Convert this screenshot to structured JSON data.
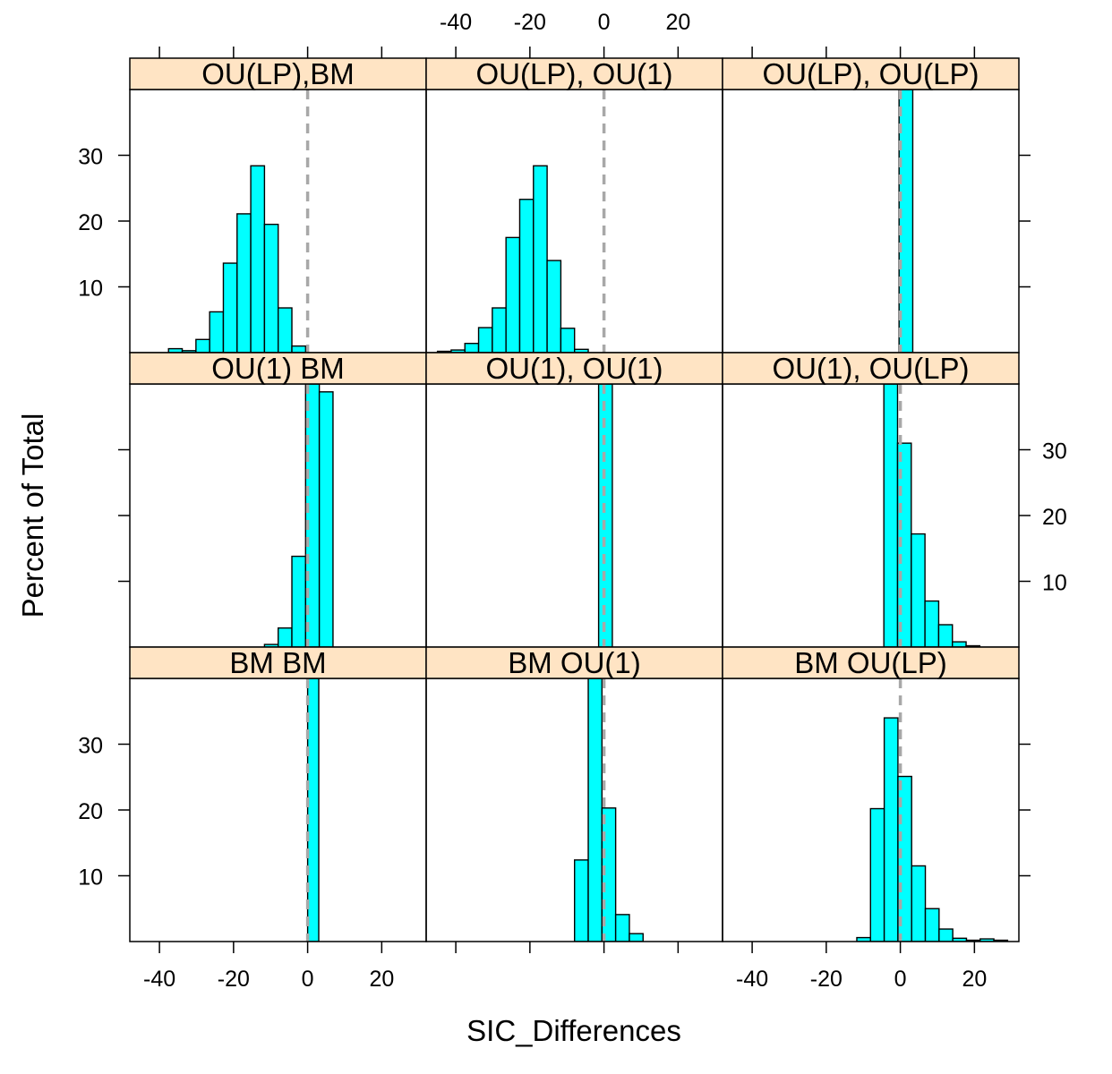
{
  "chart_data": {
    "type": "bar",
    "layout": "lattice-3x3",
    "xlabel": "SIC_Differences",
    "ylabel": "Percent of Total",
    "xlim": [
      -48,
      32
    ],
    "ylim": [
      0,
      40
    ],
    "x_ticks": [
      "-40",
      "-20",
      "0",
      "20"
    ],
    "y_ticks": [
      "10",
      "20",
      "30"
    ],
    "reference_line_x": 0,
    "strip_color": "#ffe4c4",
    "bar_color": "#00ffff",
    "reference_line_color": "#a8a8a8",
    "panels": [
      {
        "strip": "OU(LP),BM",
        "bin_width": 3.7,
        "bars": [
          {
            "x": -35.7,
            "y": 0.6
          },
          {
            "x": -32.0,
            "y": 0.3
          },
          {
            "x": -28.3,
            "y": 2.0
          },
          {
            "x": -24.6,
            "y": 6.2
          },
          {
            "x": -20.9,
            "y": 13.6
          },
          {
            "x": -17.2,
            "y": 21.1
          },
          {
            "x": -13.5,
            "y": 28.4
          },
          {
            "x": -9.8,
            "y": 19.5
          },
          {
            "x": -6.1,
            "y": 6.8
          },
          {
            "x": -2.4,
            "y": 1.0
          }
        ]
      },
      {
        "strip": "OU(LP), OU(1)",
        "bin_width": 3.7,
        "bars": [
          {
            "x": -43.1,
            "y": 0.2
          },
          {
            "x": -39.4,
            "y": 0.4
          },
          {
            "x": -35.7,
            "y": 1.4
          },
          {
            "x": -32.0,
            "y": 3.8
          },
          {
            "x": -28.3,
            "y": 6.8
          },
          {
            "x": -24.6,
            "y": 17.5
          },
          {
            "x": -20.9,
            "y": 23.3
          },
          {
            "x": -17.2,
            "y": 28.4
          },
          {
            "x": -13.5,
            "y": 14.0
          },
          {
            "x": -9.8,
            "y": 3.7
          },
          {
            "x": -6.1,
            "y": 0.5
          }
        ]
      },
      {
        "strip": "OU(LP), OU(LP)",
        "bin_width": 3.7,
        "bars": [
          {
            "x": 1.5,
            "y": 40
          }
        ]
      },
      {
        "strip": "OU(1) BM",
        "bin_width": 3.7,
        "bars": [
          {
            "x": -9.8,
            "y": 0.4
          },
          {
            "x": -6.1,
            "y": 2.9
          },
          {
            "x": -2.4,
            "y": 13.8
          },
          {
            "x": 1.3,
            "y": 40
          },
          {
            "x": 5.0,
            "y": 38.8
          }
        ]
      },
      {
        "strip": "OU(1), OU(1)",
        "bin_width": 3.7,
        "bars": [
          {
            "x": 0.4,
            "y": 40
          }
        ]
      },
      {
        "strip": "OU(1), OU(LP)",
        "bin_width": 3.7,
        "bars": [
          {
            "x": -2.6,
            "y": 40
          },
          {
            "x": 1.1,
            "y": 31.0
          },
          {
            "x": 4.8,
            "y": 17.2
          },
          {
            "x": 8.5,
            "y": 7.0
          },
          {
            "x": 12.2,
            "y": 3.4
          },
          {
            "x": 15.9,
            "y": 0.8
          },
          {
            "x": 19.6,
            "y": 0.2
          }
        ]
      },
      {
        "strip": "BM BM",
        "bin_width": 3.0,
        "bars": [
          {
            "x": 1.5,
            "y": 40
          }
        ]
      },
      {
        "strip": "BM OU(1)",
        "bin_width": 3.7,
        "bars": [
          {
            "x": -6.1,
            "y": 12.4
          },
          {
            "x": -2.4,
            "y": 40
          },
          {
            "x": 1.3,
            "y": 20.3
          },
          {
            "x": 5.0,
            "y": 4.1
          },
          {
            "x": 8.7,
            "y": 1.2
          }
        ]
      },
      {
        "strip": "BM OU(LP)",
        "bin_width": 3.7,
        "bars": [
          {
            "x": -9.9,
            "y": 0.6
          },
          {
            "x": -6.2,
            "y": 20.2
          },
          {
            "x": -2.5,
            "y": 34.0
          },
          {
            "x": 1.2,
            "y": 25.1
          },
          {
            "x": 4.9,
            "y": 11.5
          },
          {
            "x": 8.6,
            "y": 5.0
          },
          {
            "x": 12.3,
            "y": 1.9
          },
          {
            "x": 16.0,
            "y": 0.5
          },
          {
            "x": 19.7,
            "y": 0.2
          },
          {
            "x": 23.4,
            "y": 0.4
          },
          {
            "x": 27.1,
            "y": 0.2
          }
        ]
      }
    ]
  }
}
